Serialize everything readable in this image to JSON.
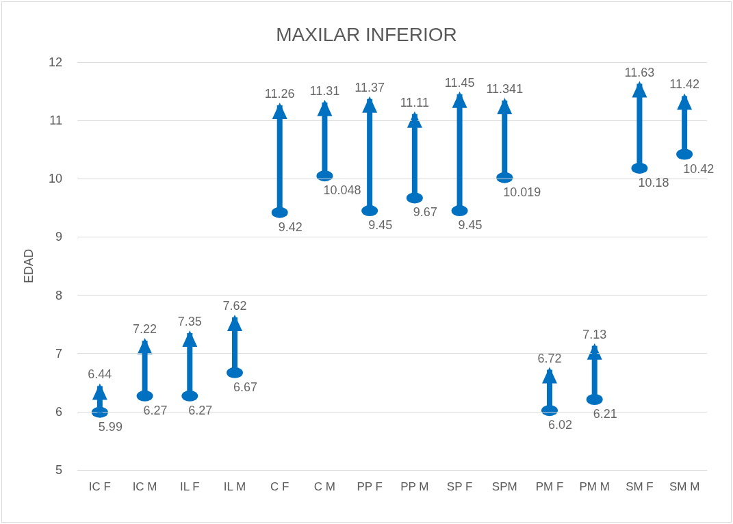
{
  "chart_data": {
    "type": "bar",
    "title": "MAXILAR INFERIOR",
    "ylabel": "EDAD",
    "categories": [
      "IC F",
      "IC M",
      "IL F",
      "IL M",
      "C F",
      "C M",
      "PP F",
      "PP M",
      "SP F",
      "SPM",
      "PM F",
      "PM M",
      "SM F",
      "SM M"
    ],
    "base": [
      5.99,
      6.27,
      6.27,
      6.67,
      9.42,
      10.048,
      9.45,
      9.67,
      9.45,
      10.019,
      6.02,
      6.21,
      10.18,
      10.42
    ],
    "values": [
      0.45,
      0.95,
      1.08,
      0.95,
      1.84,
      1.262,
      1.92,
      1.44,
      2.0,
      1.322,
      0.7,
      0.92,
      1.45,
      1.0
    ],
    "color": "#0070c0",
    "ylim": [
      5,
      12
    ],
    "yticks": [
      5,
      6,
      7,
      8,
      9,
      10,
      11,
      12
    ],
    "grid": "y",
    "annotations": [
      {
        "text": "6.44",
        "x": "IC F",
        "y": 6.44
      },
      {
        "text": "5.99",
        "x": "IC F",
        "y": 5.99
      },
      {
        "text": "7.22",
        "x": "IC M",
        "y": 7.22
      },
      {
        "text": "6.27",
        "x": "IC M",
        "y": 6.27
      },
      {
        "text": "7.35",
        "x": "IL F",
        "y": 7.35
      },
      {
        "text": "6.27",
        "x": "IL F",
        "y": 6.27
      },
      {
        "text": "7.62",
        "x": "IL M",
        "y": 7.62
      },
      {
        "text": "6.67",
        "x": "IL M",
        "y": 6.67
      },
      {
        "text": "11.26",
        "x": "C F",
        "y": 11.26
      },
      {
        "text": "9.42",
        "x": "C F",
        "y": 9.42
      },
      {
        "text": "11.31",
        "x": "C M",
        "y": 11.31
      },
      {
        "text": "10.048",
        "x": "C M",
        "y": 10.048
      },
      {
        "text": "11.37",
        "x": "PP F",
        "y": 11.37
      },
      {
        "text": "9.45",
        "x": "PP F",
        "y": 9.45
      },
      {
        "text": "11.11",
        "x": "PP M",
        "y": 11.11
      },
      {
        "text": "9.67",
        "x": "PP M",
        "y": 9.67
      },
      {
        "text": "11.45",
        "x": "SP F",
        "y": 11.45
      },
      {
        "text": "9.45",
        "x": "SP F",
        "y": 9.45
      },
      {
        "text": "11.341",
        "x": "SPM",
        "y": 11.341
      },
      {
        "text": "10.019",
        "x": "SPM",
        "y": 10.019
      },
      {
        "text": "6.72",
        "x": "PM F",
        "y": 6.72
      },
      {
        "text": "6.02",
        "x": "PM F",
        "y": 6.02
      },
      {
        "text": "7.13",
        "x": "PM M",
        "y": 7.13
      },
      {
        "text": "6.21",
        "x": "PM M",
        "y": 6.21
      },
      {
        "text": "11.63",
        "x": "SM F",
        "y": 11.63
      },
      {
        "text": "10.18",
        "x": "SM F",
        "y": 10.18
      },
      {
        "text": "11.42",
        "x": "SM M",
        "y": 11.42
      },
      {
        "text": "10.42",
        "x": "SM M",
        "y": 10.42
      }
    ]
  }
}
